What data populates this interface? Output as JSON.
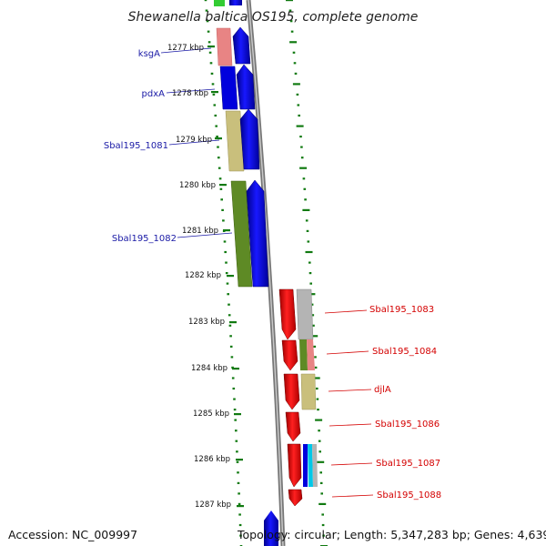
{
  "title": "Shewanella baltica OS195, complete genome",
  "footer": {
    "accession": "Accession: NC_009997",
    "topology": "Topology: circular; Length: 5,347,283 bp; Genes: 4,639"
  },
  "ticks": [
    "1277 kbp",
    "1278 kbp",
    "1279 kbp",
    "1280 kbp",
    "1281 kbp",
    "1282 kbp",
    "1283 kbp",
    "1284 kbp",
    "1285 kbp",
    "1286 kbp",
    "1287 kbp"
  ],
  "genes_forward": [
    "ksgA",
    "pdxA",
    "Sbal195_1081",
    "Sbal195_1082"
  ],
  "genes_reverse": [
    "Sbal195_1083",
    "Sbal195_1084",
    "djlA",
    "Sbal195_1086",
    "Sbal195_1087",
    "Sbal195_1088"
  ],
  "colors": {
    "forward_gene": "#0000e6",
    "reverse_gene": "#ee0000",
    "forward_label": "#1a1aa6",
    "reverse_label": "#d40000",
    "ruler_tick": "#117a11",
    "backbone": "#8c8c8c",
    "cog_rose": "#e88484",
    "cog_khaki": "#c9bf7c",
    "cog_olive": "#5e8a25",
    "cog_gray": "#b4b4b4",
    "cog_cyan": "#00c8e8",
    "cog_green": "#33cc33"
  }
}
